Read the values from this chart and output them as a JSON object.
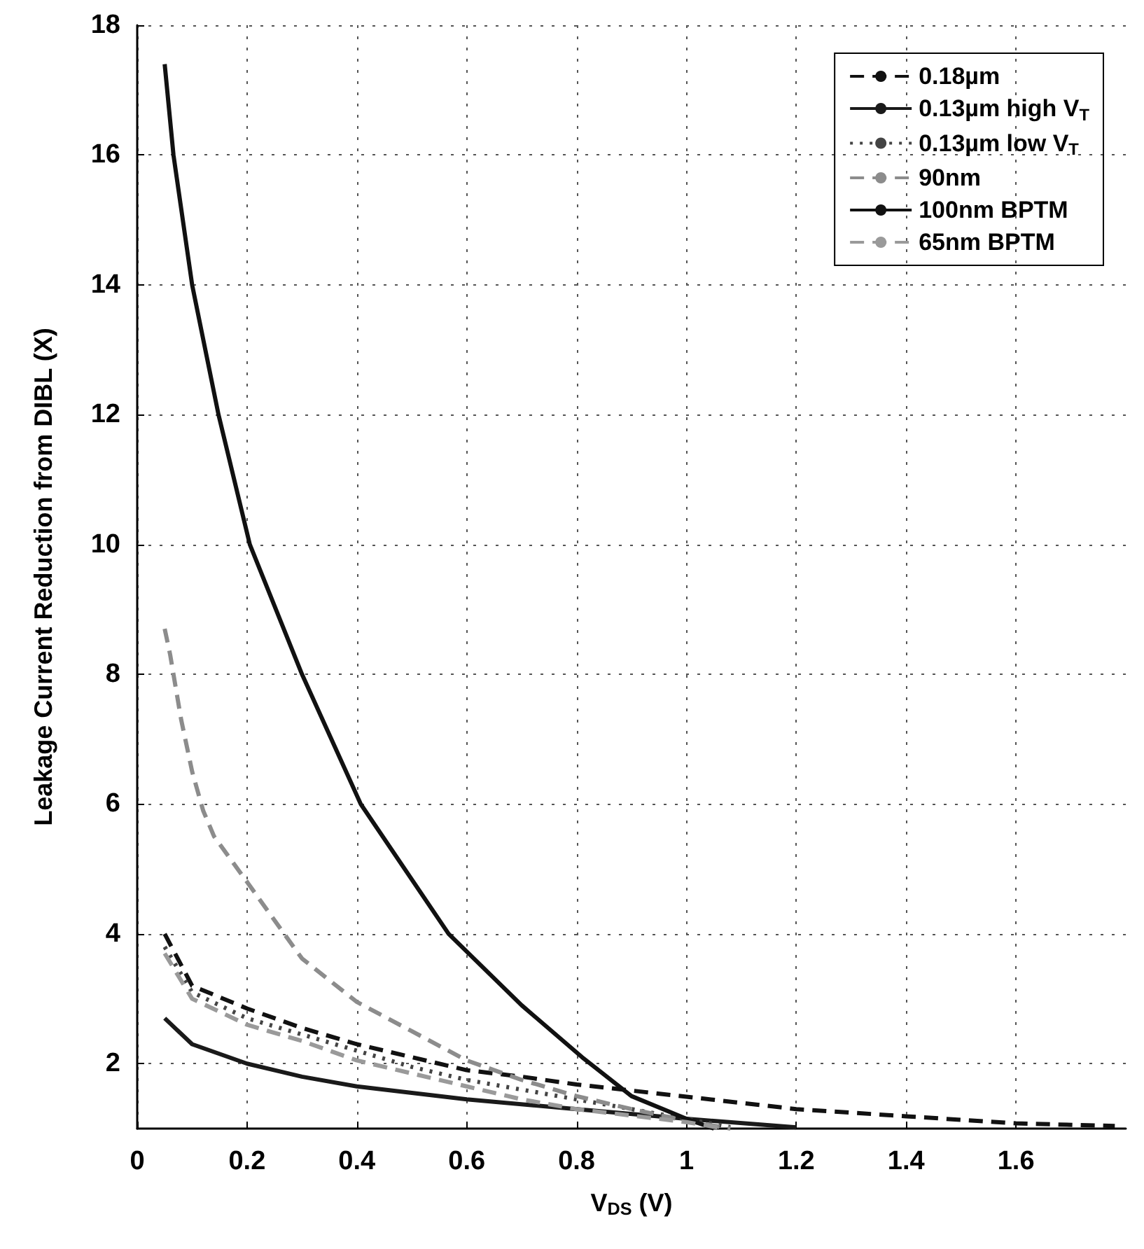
{
  "chart_data": {
    "type": "line",
    "xlabel": "V$_{DS}$ (V)",
    "ylabel": "Leakage Current Reduction from DIBL (X)",
    "xlim": [
      0,
      1.8
    ],
    "xticks": [
      0,
      0.2,
      0.4,
      0.6,
      0.8,
      1,
      1.2,
      1.4,
      1.6
    ],
    "ylim": [
      1,
      18
    ],
    "yticks": [
      2,
      4,
      6,
      8,
      10,
      12,
      14,
      16,
      18
    ],
    "grid": true,
    "legend": "top right",
    "marker": "none",
    "series": [
      {
        "name": "0.18µm",
        "color": "#111111",
        "line_style": "dashed",
        "x": [
          0.05,
          0.1,
          0.2,
          0.3,
          0.4,
          0.5,
          0.6,
          0.7,
          0.8,
          0.98,
          1.2,
          1.4,
          1.6,
          1.78
        ],
        "values": [
          4.0,
          3.2,
          2.85,
          2.55,
          2.3,
          2.1,
          1.9,
          1.8,
          1.68,
          1.51,
          1.3,
          1.19,
          1.08,
          1.04
        ]
      },
      {
        "name": "0.13µm high V$_{T}$",
        "color": "#1a1a1a",
        "line_style": "solid",
        "x": [
          0.05,
          0.1,
          0.2,
          0.3,
          0.4,
          0.6,
          0.8,
          1.0,
          1.2
        ],
        "values": [
          2.7,
          2.3,
          2.0,
          1.8,
          1.65,
          1.45,
          1.3,
          1.15,
          1.02
        ]
      },
      {
        "name": "0.13µm low V$_{T}$",
        "color": "#444444",
        "line_style": "dotted",
        "x": [
          0.05,
          0.1,
          0.2,
          0.3,
          0.4,
          0.5,
          0.6,
          0.7,
          0.8,
          0.9,
          1.0,
          1.08
        ],
        "values": [
          3.8,
          3.1,
          2.7,
          2.45,
          2.2,
          1.95,
          1.75,
          1.6,
          1.45,
          1.3,
          1.15,
          1.02
        ]
      },
      {
        "name": "90nm",
        "color": "#8c8c8c",
        "line_style": "dashed",
        "x": [
          0.05,
          0.06,
          0.08,
          0.1,
          0.12,
          0.14,
          0.2,
          0.3,
          0.4,
          0.5,
          0.6,
          0.7,
          0.8,
          0.9,
          1.0,
          1.08
        ],
        "values": [
          8.7,
          8.3,
          7.3,
          6.5,
          5.9,
          5.5,
          4.8,
          3.62,
          2.95,
          2.5,
          2.05,
          1.75,
          1.5,
          1.3,
          1.12,
          1.0
        ]
      },
      {
        "name": "100nm BPTM",
        "color": "#111111",
        "line_style": "solid",
        "x": [
          0.05,
          0.066,
          0.1,
          0.148,
          0.205,
          0.3,
          0.407,
          0.567,
          0.7,
          0.81,
          0.9,
          1.0,
          1.05
        ],
        "values": [
          17.4,
          16,
          14,
          12,
          10,
          8,
          6,
          4,
          2.9,
          2.1,
          1.5,
          1.15,
          1.0
        ]
      },
      {
        "name": "65nm BPTM",
        "color": "#9a9a9a",
        "line_style": "dashed",
        "x": [
          0.05,
          0.1,
          0.2,
          0.3,
          0.4,
          0.5,
          0.6,
          0.7,
          0.8,
          0.9,
          1.0,
          1.07
        ],
        "values": [
          3.7,
          3.0,
          2.6,
          2.35,
          2.05,
          1.85,
          1.65,
          1.45,
          1.3,
          1.2,
          1.1,
          1.0
        ]
      }
    ]
  }
}
